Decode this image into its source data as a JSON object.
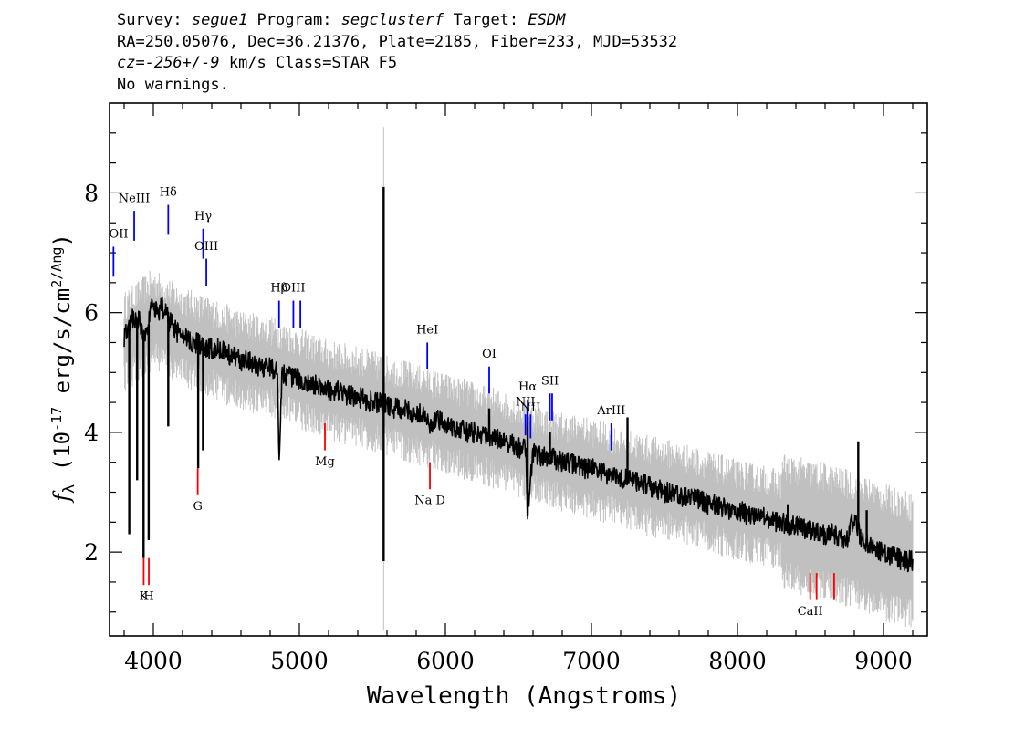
{
  "header": {
    "line1": {
      "survey_label": "Survey: ",
      "survey": "segue1",
      "program_label": " Program: ",
      "program": "segclusterf",
      "target_label": " Target: ",
      "target": "ESDM"
    },
    "line2": "RA=250.05076, Dec=36.21376, Plate=2185, Fiber=233, MJD=53532",
    "line3": {
      "cz_label": "cz=",
      "cz": "-256+/-9",
      "rest": " km/s Class=STAR F5"
    },
    "line4": "No warnings."
  },
  "chart_data": {
    "type": "line",
    "xlabel": "Wavelength (Angstroms)",
    "ylabel": "f_λ (10^-17 erg/s/cm^2/Ang)",
    "xlim": [
      3700,
      9300
    ],
    "ylim": [
      0.6,
      9.5
    ],
    "xticks": [
      4000,
      5000,
      6000,
      7000,
      8000,
      9000
    ],
    "yticks": [
      2,
      4,
      6,
      8
    ],
    "grid": false,
    "colors": {
      "flux": "#000000",
      "noise": "#c0c0c0",
      "emission": "#0000ff",
      "absorption": "#ff0000"
    },
    "series": [
      {
        "style": "black",
        "x": [
          3800,
          3830,
          3860,
          3900,
          3930,
          3960,
          3990,
          4030,
          4060,
          4100,
          4150,
          4200,
          4250,
          4300,
          4340,
          4360,
          4400,
          4450,
          4500,
          4550,
          4600,
          4650,
          4700,
          4750,
          4800,
          4850,
          4861,
          4880,
          4920,
          4960,
          5000,
          5050,
          5100,
          5150,
          5200,
          5250,
          5300,
          5350,
          5400,
          5450,
          5500,
          5550,
          5600,
          5650,
          5700,
          5750,
          5800,
          5850,
          5893,
          5950,
          6000,
          6050,
          6100,
          6150,
          6200,
          6250,
          6300,
          6350,
          6400,
          6450,
          6500,
          6550,
          6563,
          6600,
          6650,
          6700,
          6750,
          6800,
          6850,
          6900,
          6950,
          7000,
          7050,
          7100,
          7150,
          7200,
          7250,
          7300,
          7350,
          7400,
          7450,
          7500,
          7550,
          7600,
          7650,
          7700,
          7750,
          7800,
          7850,
          7900,
          7950,
          8000,
          8050,
          8100,
          8150,
          8200,
          8250,
          8300,
          8350,
          8400,
          8450,
          8500,
          8550,
          8600,
          8650,
          8700,
          8750,
          8800,
          8850,
          8900,
          8950,
          9000,
          9050,
          9100,
          9150,
          9200
        ],
        "y": [
          5.6,
          5.8,
          5.9,
          5.9,
          5.6,
          5.7,
          6.1,
          6.0,
          6.1,
          5.9,
          5.7,
          5.6,
          5.5,
          5.5,
          5.4,
          5.4,
          5.4,
          5.4,
          5.3,
          5.3,
          5.2,
          5.2,
          5.1,
          5.1,
          5.1,
          5.0,
          3.4,
          5.0,
          4.95,
          4.9,
          4.9,
          4.8,
          4.8,
          4.75,
          4.7,
          4.7,
          4.65,
          4.6,
          4.6,
          4.55,
          4.5,
          4.5,
          4.45,
          4.4,
          4.4,
          4.35,
          4.3,
          4.3,
          4.1,
          4.2,
          4.15,
          4.1,
          4.05,
          4.0,
          4.0,
          3.95,
          3.9,
          3.9,
          3.85,
          3.8,
          3.75,
          3.7,
          2.7,
          3.65,
          3.6,
          3.6,
          3.55,
          3.5,
          3.5,
          3.45,
          3.4,
          3.4,
          3.35,
          3.3,
          3.3,
          3.25,
          3.2,
          3.2,
          3.15,
          3.1,
          3.05,
          3.0,
          3.0,
          2.95,
          2.9,
          2.9,
          2.85,
          2.8,
          2.8,
          2.75,
          2.7,
          2.7,
          2.65,
          2.6,
          2.6,
          2.55,
          2.5,
          2.5,
          2.45,
          2.45,
          2.4,
          2.35,
          2.35,
          2.3,
          2.3,
          2.25,
          2.2,
          2.6,
          2.2,
          2.1,
          2.05,
          2.0,
          1.95,
          1.9,
          1.85,
          1.85
        ]
      },
      {
        "style": "grey",
        "x": [
          3800,
          4000,
          4200,
          4400,
          4600,
          4800,
          5000,
          5200,
          5400,
          5600,
          5800,
          6000,
          6200,
          6400,
          6600,
          6800,
          7000,
          7200,
          7400,
          7600,
          7800,
          8000,
          8200,
          8400,
          8600,
          8800,
          9000,
          9200
        ],
        "y": [
          5.5,
          5.9,
          5.6,
          5.4,
          5.2,
          5.1,
          4.9,
          4.7,
          4.6,
          4.45,
          4.3,
          4.15,
          4.0,
          3.85,
          3.65,
          3.5,
          3.4,
          3.25,
          3.1,
          3.0,
          2.85,
          2.7,
          2.6,
          2.45,
          2.35,
          2.2,
          2.0,
          1.85
        ]
      }
    ],
    "spikes": [
      {
        "x": 3835,
        "y": 2.3
      },
      {
        "x": 3889,
        "y": 3.2
      },
      {
        "x": 3933,
        "y": 1.9
      },
      {
        "x": 3968,
        "y": 2.2
      },
      {
        "x": 4102,
        "y": 4.1
      },
      {
        "x": 4307,
        "y": 3.4
      },
      {
        "x": 4340,
        "y": 3.7
      },
      {
        "x": 4861,
        "y": 3.4
      },
      {
        "x": 5577,
        "y": 8.1
      },
      {
        "x": 5577,
        "y": 1.85
      },
      {
        "x": 6300,
        "y": 4.4
      },
      {
        "x": 6563,
        "y": 2.6
      },
      {
        "x": 6563,
        "y": 4.4
      },
      {
        "x": 6716,
        "y": 4.0
      },
      {
        "x": 7247,
        "y": 4.25
      },
      {
        "x": 8345,
        "y": 2.8
      },
      {
        "x": 8827,
        "y": 3.85
      },
      {
        "x": 8885,
        "y": 2.7
      }
    ],
    "lines": [
      {
        "label": "OII",
        "x": 3727,
        "y1": 6.6,
        "y2": 7.1,
        "type": "emission",
        "label_y": 7.25
      },
      {
        "label": "NeIII",
        "x": 3869,
        "y1": 7.2,
        "y2": 7.7,
        "type": "emission",
        "label_y": 7.85
      },
      {
        "label": "Hδ",
        "x": 4102,
        "y1": 7.3,
        "y2": 7.8,
        "type": "emission",
        "label_y": 7.95
      },
      {
        "label": "Hγ",
        "x": 4341,
        "y1": 6.9,
        "y2": 7.4,
        "type": "emission",
        "label_y": 7.55
      },
      {
        "label": "OIII",
        "x": 4363,
        "y1": 6.45,
        "y2": 6.9,
        "type": "emission",
        "label_y": 7.05
      },
      {
        "label": "Hβ",
        "x": 4861,
        "y1": 5.75,
        "y2": 6.2,
        "type": "emission",
        "label_y": 6.35
      },
      {
        "label": "OIII",
        "x": 4959,
        "y1": 5.75,
        "y2": 6.2,
        "type": "emission",
        "label_y": 6.35
      },
      {
        "label": "",
        "x": 5007,
        "y1": 5.75,
        "y2": 6.2,
        "type": "emission",
        "label_y": 6.35
      },
      {
        "label": "HeI",
        "x": 5876,
        "y1": 5.05,
        "y2": 5.5,
        "type": "emission",
        "label_y": 5.65
      },
      {
        "label": "OI",
        "x": 6300,
        "y1": 4.65,
        "y2": 5.1,
        "type": "emission",
        "label_y": 5.25
      },
      {
        "label": "NII",
        "x": 6548,
        "y1": 3.95,
        "y2": 4.3,
        "type": "emission",
        "label_y": 4.45
      },
      {
        "label": "Hα",
        "x": 6563,
        "y1": 4.1,
        "y2": 4.55,
        "type": "emission",
        "label_y": 4.7
      },
      {
        "label": "NII",
        "x": 6583,
        "y1": 3.9,
        "y2": 4.3,
        "type": "emission",
        "label_y": 4.35
      },
      {
        "label": "SII",
        "x": 6716,
        "y1": 4.2,
        "y2": 4.65,
        "type": "emission",
        "label_y": 4.8
      },
      {
        "label": "",
        "x": 6731,
        "y1": 4.2,
        "y2": 4.65,
        "type": "emission",
        "label_y": 4.8
      },
      {
        "label": "ArIII",
        "x": 7136,
        "y1": 3.7,
        "y2": 4.15,
        "type": "emission",
        "label_y": 4.3
      },
      {
        "label": "K",
        "x": 3934,
        "y1": 1.45,
        "y2": 1.9,
        "type": "absorption",
        "label_y": 1.2
      },
      {
        "label": "H",
        "x": 3969,
        "y1": 1.45,
        "y2": 1.9,
        "type": "absorption",
        "label_y": 1.2
      },
      {
        "label": "G",
        "x": 4304,
        "y1": 2.95,
        "y2": 3.4,
        "type": "absorption",
        "label_y": 2.7
      },
      {
        "label": "Mg",
        "x": 5175,
        "y1": 3.7,
        "y2": 4.15,
        "type": "absorption",
        "label_y": 3.45
      },
      {
        "label": "Na D",
        "x": 5894,
        "y1": 3.05,
        "y2": 3.5,
        "type": "absorption",
        "label_y": 2.8
      },
      {
        "label": "CaII",
        "x": 8498,
        "y1": 1.2,
        "y2": 1.65,
        "type": "absorption",
        "label_y": 0.95
      },
      {
        "label": "",
        "x": 8542,
        "y1": 1.2,
        "y2": 1.65,
        "type": "absorption",
        "label_y": 0.95
      },
      {
        "label": "",
        "x": 8662,
        "y1": 1.2,
        "y2": 1.65,
        "type": "absorption",
        "label_y": 0.95
      }
    ]
  }
}
